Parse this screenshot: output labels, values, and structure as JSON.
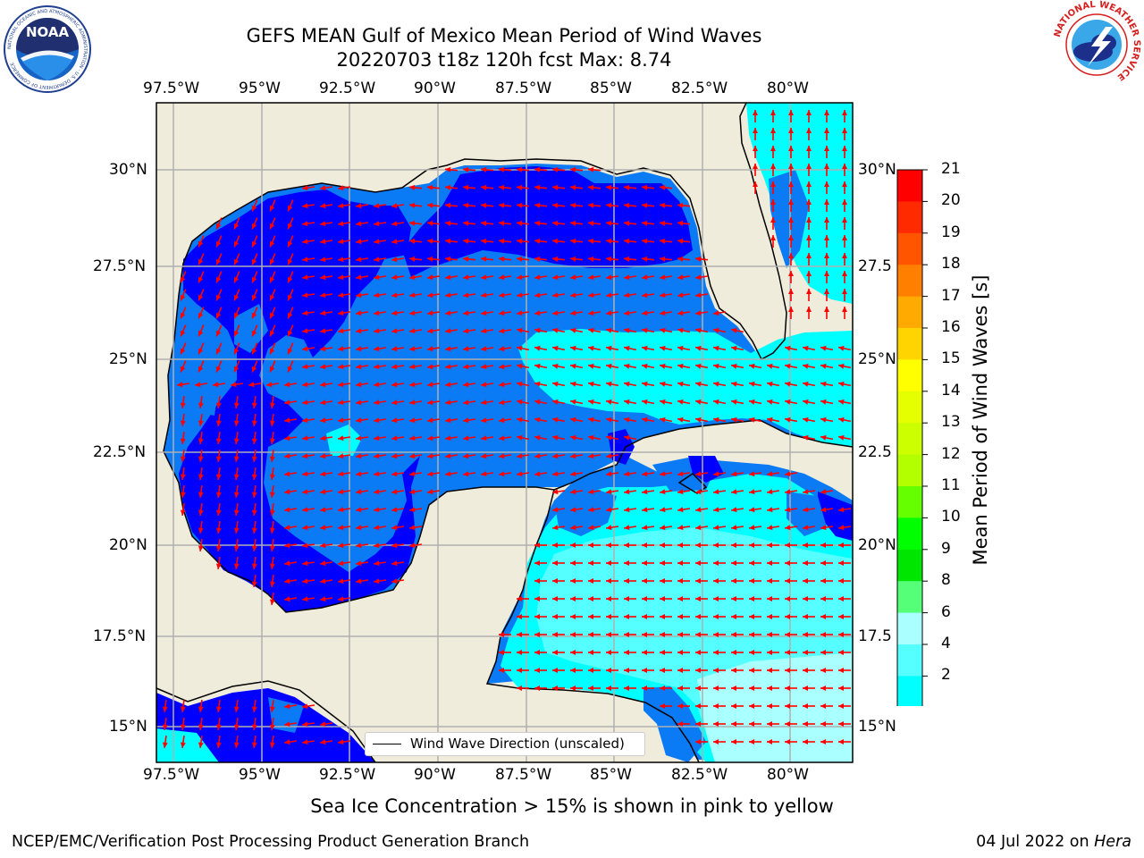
{
  "title": {
    "line1": "GEFS MEAN Gulf of Mexico Mean Period of Wind Waves",
    "line2": "20220703 t18z 120h fcst   Max: 8.74"
  },
  "axes": {
    "lon_ticks": [
      "97.5°W",
      "95°W",
      "92.5°W",
      "90°W",
      "87.5°W",
      "85°W",
      "82.5°W",
      "80°W"
    ],
    "lat_ticks_left": [
      "30°N",
      "27.5°N",
      "25°N",
      "22.5°N",
      "20°N",
      "17.5°N",
      "15°N"
    ],
    "lat_ticks_right": [
      "30°N",
      "27.5",
      "25°N",
      "22.5",
      "20°N",
      "17.5",
      "15°N"
    ]
  },
  "colorbar": {
    "title": "Mean Period of Wind Waves [s]",
    "levels": [
      "21",
      "20",
      "19",
      "18",
      "17",
      "16",
      "15",
      "14",
      "13",
      "12",
      "11",
      "10",
      "9",
      "8",
      "6",
      "4",
      "2"
    ],
    "colors": [
      "#ff0000",
      "#ff2a00",
      "#ff5500",
      "#ff8000",
      "#ffaa00",
      "#ffd400",
      "#ffff00",
      "#e6ff00",
      "#ccff00",
      "#b3ff00",
      "#66ff00",
      "#00ff00",
      "#00e600",
      "#55ff77",
      "#aaffff",
      "#55ffff",
      "#00ffff",
      "#0080ff"
    ],
    "extend_color": "#0000ff"
  },
  "legend": {
    "label": "Wind Wave Direction (unscaled)"
  },
  "note": "Sea Ice Concentration > 15% is shown in pink to yellow",
  "footer": {
    "left": "NCEP/EMC/Verification Post Processing Product Generation Branch",
    "right_date": "04 Jul 2022 on",
    "right_host": "Hera"
  },
  "logos": {
    "noaa": {
      "text": "NOAA",
      "ring": "NATIONAL OCEANIC AND ATMOSPHERIC ADMINISTRATION · U.S. DEPARTMENT OF COMMERCE"
    },
    "nws": {
      "ring": "NATIONAL WEATHER SERVICE"
    }
  },
  "map_colors": {
    "land": "#efecdc",
    "band_2_4": "#0a7bf5",
    "band_lt2": "#0000ff",
    "band_4_6": "#00ffff",
    "band_6_8": "#55ffff",
    "band_8_9": "#aaffff",
    "arrow": "#ff0000",
    "grid": "#b0b0b0"
  }
}
